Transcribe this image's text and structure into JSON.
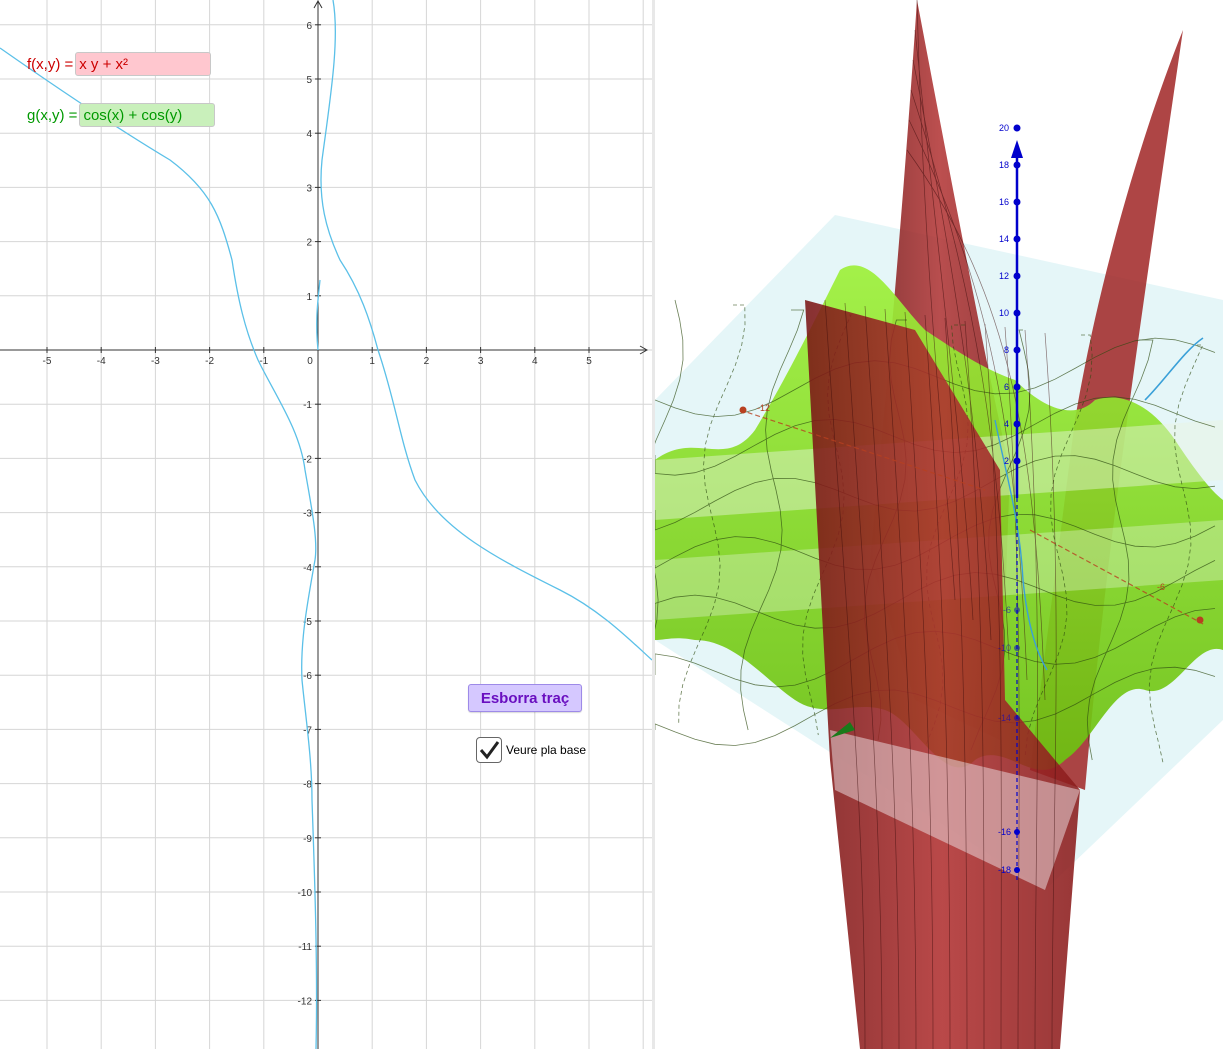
{
  "left_view": {
    "x_ticks": [
      "-5",
      "-4",
      "-3",
      "-2",
      "-1",
      "0",
      "1",
      "2",
      "3",
      "4",
      "5"
    ],
    "y_ticks": [
      "6",
      "5",
      "4",
      "3",
      "2",
      "1",
      "-1",
      "-2",
      "-3",
      "-4",
      "-5",
      "-6",
      "-7",
      "-8",
      "-9",
      "-10",
      "-11",
      "-12"
    ],
    "f_input": {
      "label": "f(x,y) =",
      "value": "x y + x²",
      "color": "#cc0000",
      "bg": "#ffc7cf"
    },
    "g_input": {
      "label": "g(x,y) =",
      "value": "cos(x) + cos(y)",
      "color": "#009900",
      "bg": "#c9f0bb"
    },
    "clear_button": {
      "label": "Esborra traç"
    },
    "base_checkbox": {
      "label": "Veure pla base",
      "checked": true
    },
    "trace_color": "#5bc0e8"
  },
  "right_view": {
    "z_ticks_up": [
      "20",
      "18",
      "16",
      "14",
      "12",
      "10",
      "8",
      "6",
      "4",
      "2"
    ],
    "z_ticks_down": [
      "-6",
      "-10",
      "-14",
      "-16",
      "-18"
    ],
    "axis_label_x": "-12",
    "axis_label_y": "-6",
    "axis_color": "#0000cc",
    "surface_f_color": "#a52a2a",
    "surface_g_color": "#88e020"
  }
}
